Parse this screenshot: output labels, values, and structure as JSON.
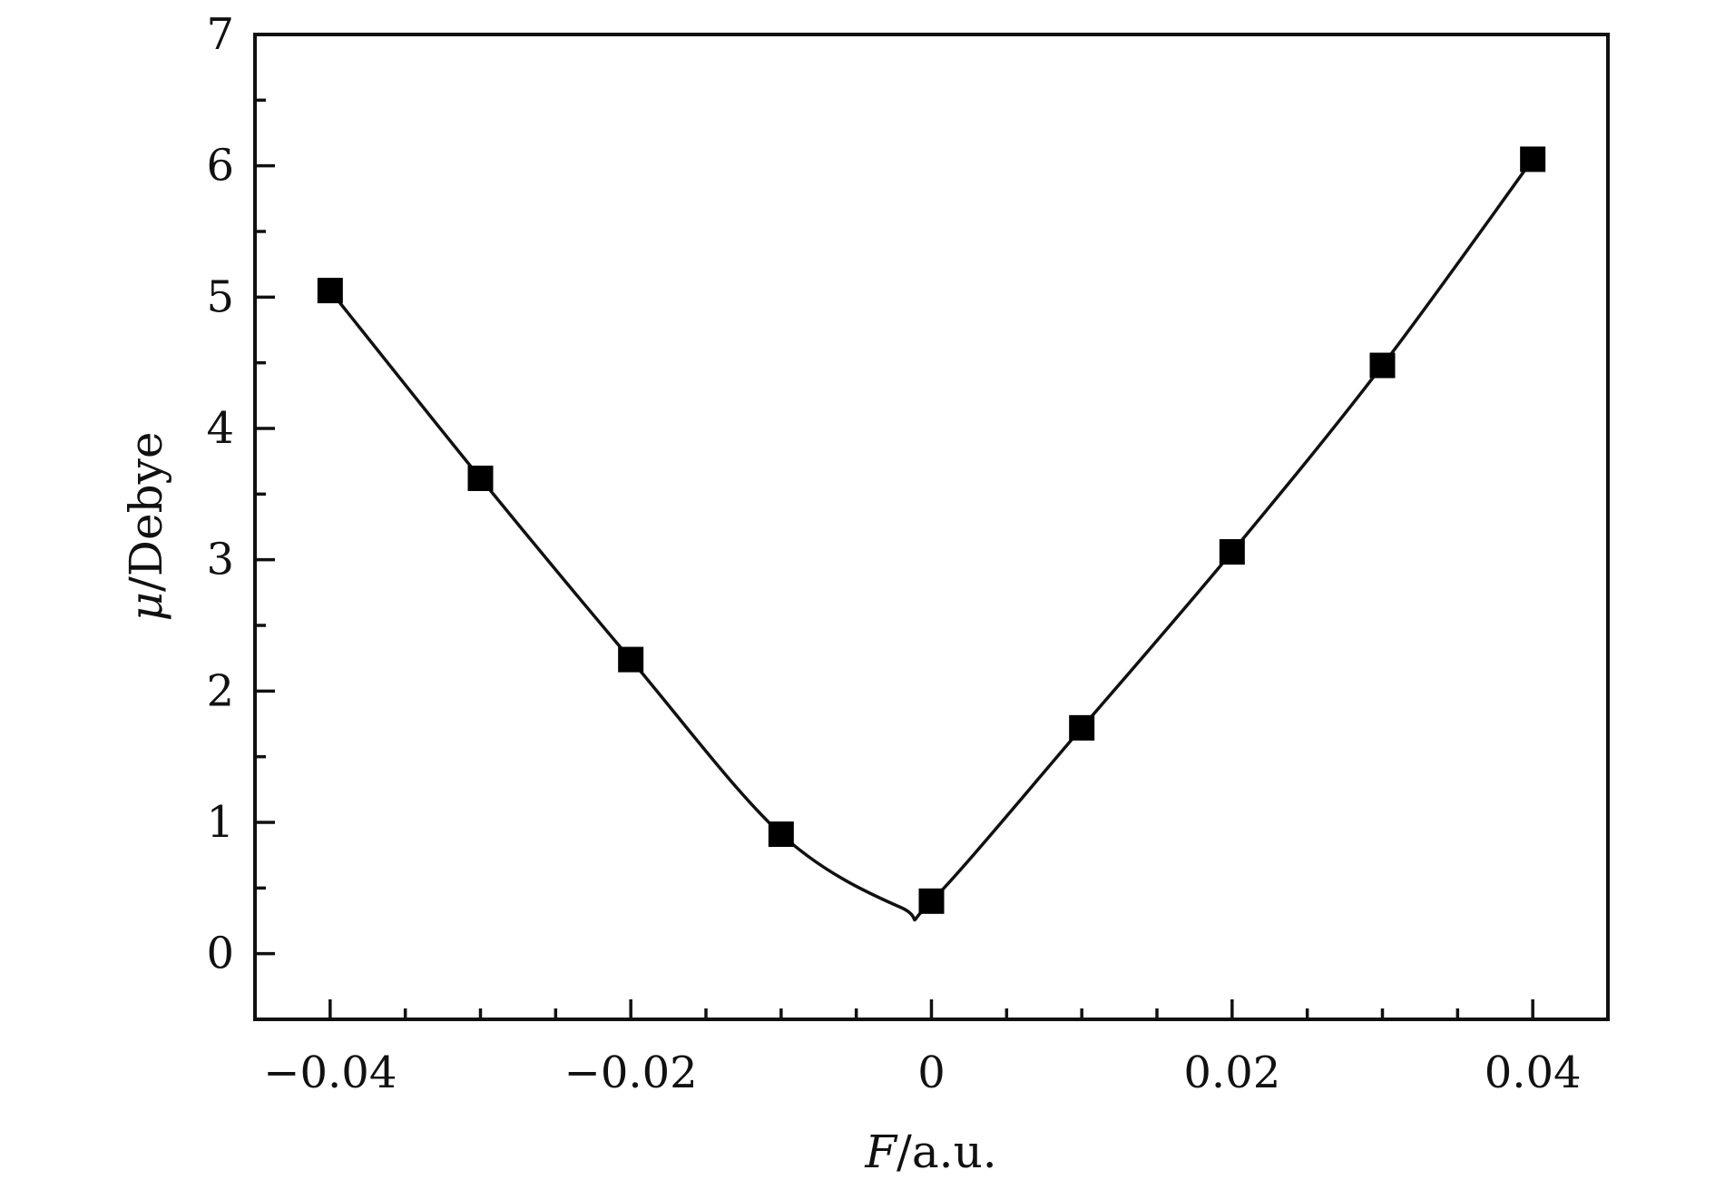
{
  "chart_data": {
    "type": "line",
    "title": "",
    "xlabel": {
      "var": "F",
      "unit": "/a.u."
    },
    "ylabel": {
      "var": "μ",
      "unit": "/Debye"
    },
    "xlim": [
      -0.045,
      0.045
    ],
    "ylim": [
      -0.5,
      7
    ],
    "x_ticks": [
      -0.04,
      -0.02,
      0,
      0.02,
      0.04
    ],
    "x_tick_labels": [
      "−0.04",
      "−0.02",
      "0",
      "0.02",
      "0.04"
    ],
    "x_minor_step": 0.005,
    "y_ticks": [
      0,
      1,
      2,
      3,
      4,
      5,
      6,
      7
    ],
    "y_tick_labels": [
      "0",
      "1",
      "2",
      "3",
      "4",
      "5",
      "6",
      "7"
    ],
    "y_minor_step": 0.5,
    "grid": false,
    "legend": "none",
    "marker": "square",
    "series": [
      {
        "x": [
          -0.04,
          -0.03,
          -0.02,
          -0.01,
          0.0,
          0.01,
          0.02,
          0.03,
          0.04
        ],
        "y": [
          5.05,
          3.62,
          2.24,
          0.91,
          0.4,
          1.72,
          3.06,
          4.48,
          6.05
        ]
      }
    ],
    "curve_min": {
      "x": -0.002,
      "y": 0.35
    }
  }
}
